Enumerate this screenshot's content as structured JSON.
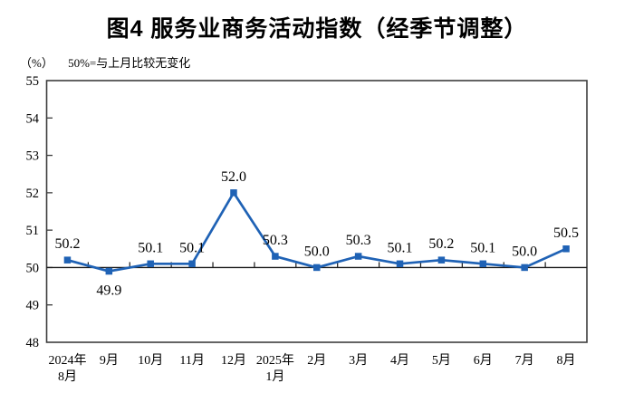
{
  "chart_data": {
    "type": "line",
    "title": "图4 服务业商务活动指数（经季节调整）",
    "unit_label": "（%）",
    "subtitle": "50%=与上月比较无变化",
    "categories": [
      "2024年\n8月",
      "9月",
      "10月",
      "11月",
      "12月",
      "2025年\n1月",
      "2月",
      "3月",
      "4月",
      "5月",
      "6月",
      "7月",
      "8月"
    ],
    "values": [
      50.2,
      49.9,
      50.1,
      50.1,
      52.0,
      50.3,
      50.0,
      50.3,
      50.1,
      50.2,
      50.1,
      50.0,
      50.5
    ],
    "ylim": [
      48,
      55
    ],
    "ytick_step": 1,
    "baseline_value": 50,
    "label_decimals": 1,
    "grid": false,
    "legend": "none",
    "colors": {
      "line": "#1F62B5",
      "marker": "#1F62B5",
      "border": "#3D3D3D",
      "baseline": "#1A1A1A",
      "text": "#000000"
    }
  }
}
